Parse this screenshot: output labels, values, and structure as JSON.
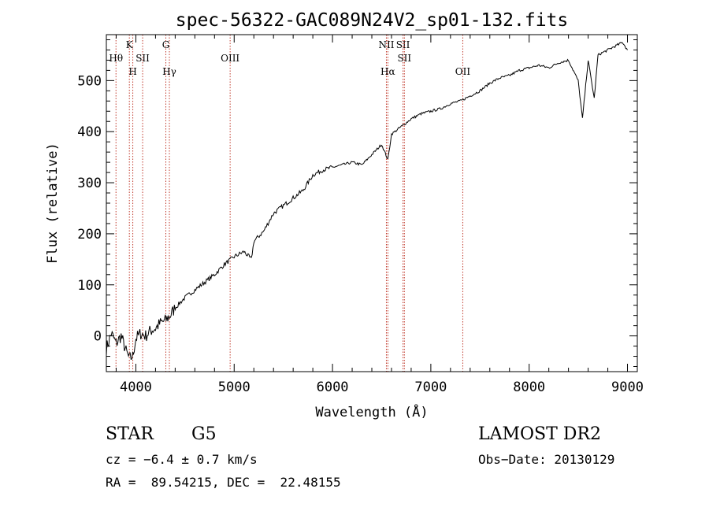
{
  "chart_data": {
    "type": "line",
    "title": "spec-56322-GAC089N24V2_sp01-132.fits",
    "xlabel": "Wavelength (Å)",
    "ylabel": "Flux (relative)",
    "xlim": [
      3700,
      9100
    ],
    "ylim": [
      -70,
      590
    ],
    "xticks": [
      4000,
      5000,
      6000,
      7000,
      8000,
      9000
    ],
    "yticks": [
      0,
      100,
      200,
      300,
      400,
      500
    ],
    "grid": false,
    "line_color": "#000000",
    "marker_color": "#c0392b",
    "series": [
      {
        "x": [
          3700,
          3750,
          3800,
          3850,
          3900,
          3933,
          3968,
          4000,
          4050,
          4100,
          4150,
          4200,
          4250,
          4300,
          4350,
          4400,
          4500,
          4600,
          4700,
          4800,
          4900,
          5000,
          5100,
          5175,
          5200,
          5300,
          5400,
          5500,
          5600,
          5700,
          5800,
          5850,
          5900,
          6000,
          6100,
          6200,
          6300,
          6400,
          6500,
          6563,
          6600,
          6700,
          6800,
          6900,
          7000,
          7100,
          7200,
          7300,
          7400,
          7500,
          7600,
          7700,
          7800,
          7900,
          8000,
          8100,
          8200,
          8300,
          8400,
          8498,
          8542,
          8600,
          8662,
          8700,
          8800,
          8900,
          8950,
          9000
        ],
        "y": [
          -25,
          5,
          -15,
          0,
          -30,
          -45,
          -40,
          -5,
          5,
          0,
          10,
          15,
          25,
          30,
          40,
          55,
          75,
          90,
          105,
          120,
          140,
          155,
          165,
          150,
          185,
          205,
          240,
          255,
          270,
          285,
          315,
          320,
          325,
          330,
          335,
          340,
          335,
          355,
          375,
          345,
          395,
          410,
          425,
          435,
          440,
          445,
          455,
          460,
          470,
          480,
          495,
          505,
          510,
          520,
          525,
          530,
          525,
          535,
          540,
          500,
          425,
          540,
          465,
          550,
          560,
          570,
          575,
          560
        ]
      }
    ],
    "line_markers": [
      {
        "label": "Hθ",
        "x": 3798,
        "row": 1
      },
      {
        "label": "K",
        "x": 3934,
        "row": 0
      },
      {
        "label": "H",
        "x": 3969,
        "row": 2
      },
      {
        "label": "SII",
        "x": 4069,
        "row": 1
      },
      {
        "label": "G",
        "x": 4305,
        "row": 0
      },
      {
        "label": "Hγ",
        "x": 4341,
        "row": 2
      },
      {
        "label": "OIII",
        "x": 4959,
        "row": 1
      },
      {
        "label": "NII",
        "x": 6548,
        "row": 0
      },
      {
        "label": "Hα",
        "x": 6563,
        "row": 2
      },
      {
        "label": "SII",
        "x": 6717,
        "row": 0
      },
      {
        "label": "SII",
        "x": 6731,
        "row": 1
      },
      {
        "label": "OII",
        "x": 7325,
        "row": 2
      }
    ]
  },
  "info": {
    "object_class": "STAR",
    "subclass": "G5",
    "survey": "LAMOST DR2",
    "redshift": "cz = −6.4 ± 0.7 km/s",
    "obs_date": "Obs−Date: 20130129",
    "coords": "RA =  89.54215, DEC =  22.48155"
  }
}
